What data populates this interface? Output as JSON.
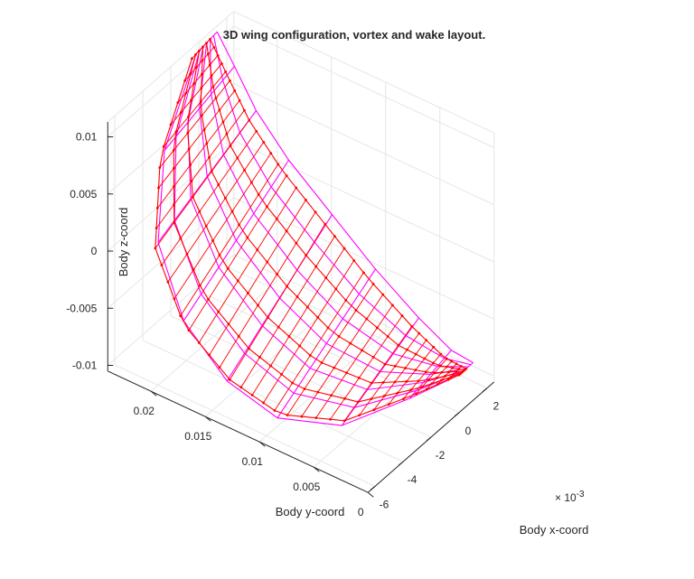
{
  "chart_data": {
    "type": "3d-mesh",
    "title": "3D wing configuration, vortex and wake layout.",
    "xlabel": "Body x-coord",
    "ylabel": "Body y-coord",
    "zlabel": "Body z-coord",
    "x_exponent_label": "× 10",
    "x_exponent_power": "-3",
    "xlim": [
      -0.0065,
      0.0025
    ],
    "ylim": [
      0,
      0.024
    ],
    "zlim": [
      -0.0105,
      0.0113
    ],
    "x_ticks": [
      {
        "value": -0.006,
        "label": "-6"
      },
      {
        "value": -0.004,
        "label": "-4"
      },
      {
        "value": -0.002,
        "label": "-2"
      },
      {
        "value": 0,
        "label": "0"
      },
      {
        "value": 0.002,
        "label": "2"
      }
    ],
    "y_ticks": [
      {
        "value": 0,
        "label": "0"
      },
      {
        "value": 0.005,
        "label": "0.005"
      },
      {
        "value": 0.01,
        "label": "0.01"
      },
      {
        "value": 0.015,
        "label": "0.015"
      },
      {
        "value": 0.02,
        "label": "0.02"
      }
    ],
    "z_ticks": [
      {
        "value": -0.01,
        "label": "-0.01"
      },
      {
        "value": -0.005,
        "label": "-0.005"
      },
      {
        "value": 0,
        "label": "0"
      },
      {
        "value": 0.005,
        "label": "0.005"
      },
      {
        "value": 0.01,
        "label": "0.01"
      }
    ],
    "grid": true,
    "colors": {
      "wing_panels": "#ff00ff",
      "vortex_lattice": "#ff0000",
      "axis": "#262626",
      "grid": "#e6e6e6"
    },
    "series": [
      {
        "name": "",
        "role": "wing panel mesh",
        "color": "#ff00ff",
        "leading_edge": [
          [
            0.001,
            0.0236,
            0.0113
          ],
          [
            0.001,
            0.022,
            0.009
          ],
          [
            0.001,
            0.02,
            0.006
          ],
          [
            0.001,
            0.017,
            0.003
          ],
          [
            0.001,
            0.013,
            0.0
          ],
          [
            0.001,
            0.009,
            -0.003
          ],
          [
            0.001,
            0.005,
            -0.0055
          ],
          [
            0.001,
            0.002,
            -0.007
          ],
          [
            0.001,
            0.0,
            -0.0072
          ]
        ],
        "trailing_edge": [
          [
            -0.0005,
            0.0236,
            0.011
          ],
          [
            -0.004,
            0.022,
            0.007
          ],
          [
            -0.006,
            0.02,
            0.002
          ],
          [
            -0.0065,
            0.017,
            -0.003
          ],
          [
            -0.0065,
            0.013,
            -0.0065
          ],
          [
            -0.006,
            0.009,
            -0.0085
          ],
          [
            -0.0045,
            0.005,
            -0.009
          ],
          [
            -0.002,
            0.002,
            -0.008
          ],
          [
            0.0,
            0.0,
            -0.0072
          ]
        ],
        "chord_stations": 6
      },
      {
        "name": "",
        "role": "vortex ring lattice",
        "color": "#ff0000",
        "leading_edge": [
          [
            0.0005,
            0.0236,
            0.0112
          ],
          [
            0.0005,
            0.022,
            0.0087
          ],
          [
            0.0005,
            0.02,
            0.0057
          ],
          [
            0.0005,
            0.017,
            0.0027
          ],
          [
            0.0005,
            0.013,
            -0.0003
          ],
          [
            0.0005,
            0.009,
            -0.0033
          ],
          [
            0.0005,
            0.005,
            -0.0057
          ],
          [
            0.0005,
            0.002,
            -0.0071
          ],
          [
            0.0005,
            0.0,
            -0.0072
          ]
        ],
        "trailing_edge": [
          [
            -0.0008,
            0.0236,
            0.0109
          ],
          [
            -0.0043,
            0.022,
            0.0067
          ],
          [
            -0.0062,
            0.02,
            0.0017
          ],
          [
            -0.0065,
            0.017,
            -0.0033
          ],
          [
            -0.0063,
            0.013,
            -0.0066
          ],
          [
            -0.0058,
            0.009,
            -0.0084
          ],
          [
            -0.0043,
            0.005,
            -0.0088
          ],
          [
            -0.0019,
            0.002,
            -0.0079
          ],
          [
            0.0,
            0.0,
            -0.0072
          ]
        ],
        "chord_stations": 5,
        "span_stations": 37
      }
    ]
  }
}
